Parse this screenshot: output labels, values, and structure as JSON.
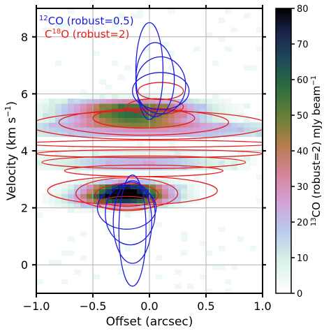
{
  "chart_data": {
    "type": "heatmap",
    "title": "",
    "xlabel": "Offset (arcsec)",
    "ylabel_main": "Velocity (km s",
    "ylabel_exp": "−1",
    "ylabel_end": ")",
    "xlim": [
      -1.0,
      1.0
    ],
    "ylim": [
      -1.0,
      9.0
    ],
    "xticks": [
      -1.0,
      -0.5,
      0.0,
      0.5,
      1.0
    ],
    "xtick_labels": [
      "−1.0",
      "−0.5",
      "0.0",
      "0.5",
      "1.0"
    ],
    "yticks": [
      0,
      2,
      4,
      6,
      8
    ],
    "ytick_labels": [
      "0",
      "2",
      "4",
      "6",
      "8"
    ],
    "grid": true,
    "colorbar": {
      "label_sup": "13",
      "label_main": "CO (robust=2) mJy beam",
      "label_exp": "−1",
      "min": 0,
      "max": 80,
      "ticks": [
        0,
        10,
        20,
        30,
        40,
        50,
        60,
        70,
        80
      ],
      "tick_labels": [
        "0",
        "10",
        "20",
        "30",
        "40",
        "50",
        "60",
        "70",
        "80"
      ],
      "colormap": "cubehelix_r"
    },
    "legend": {
      "placement": "top-left",
      "items": [
        {
          "sup": "12",
          "text": "CO (robust=0.5)",
          "color": "#1a1adc"
        },
        {
          "pre": "C",
          "sup": "18",
          "text": "O (robust=2)",
          "color": "#e81c1c"
        }
      ]
    },
    "emission_bands": [
      {
        "v_center": 5.35,
        "v_half_width": 0.45,
        "offset_center": -0.15,
        "offset_half_width": 0.55,
        "peak": 58
      },
      {
        "v_center": 4.75,
        "v_half_width": 0.25,
        "offset_center": 0.0,
        "offset_half_width": 1.1,
        "peak": 28
      },
      {
        "v_center": 3.6,
        "v_half_width": 0.3,
        "offset_center": -0.1,
        "offset_half_width": 0.7,
        "peak": 22
      },
      {
        "v_center": 2.55,
        "v_half_width": 0.35,
        "offset_center": -0.2,
        "offset_half_width": 0.35,
        "peak": 78
      },
      {
        "v_center": 2.25,
        "v_half_width": 0.3,
        "offset_center": -0.3,
        "offset_half_width": 0.4,
        "peak": 25
      }
    ],
    "contours_12co": [
      {
        "offset": 0.0,
        "v_center": 6.8,
        "half_width": 0.12,
        "half_height": 1.7
      },
      {
        "offset": 0.05,
        "v_center": 6.5,
        "half_width": 0.17,
        "half_height": 1.3
      },
      {
        "offset": 0.1,
        "v_center": 6.3,
        "half_width": 0.22,
        "half_height": 1.0
      },
      {
        "offset": 0.1,
        "v_center": 6.1,
        "half_width": 0.25,
        "half_height": 0.65
      },
      {
        "offset": -0.15,
        "v_center": 1.2,
        "half_width": 0.12,
        "half_height": 1.95
      },
      {
        "offset": -0.15,
        "v_center": 1.5,
        "half_width": 0.17,
        "half_height": 1.45
      },
      {
        "offset": -0.17,
        "v_center": 1.8,
        "half_width": 0.22,
        "half_height": 1.1
      },
      {
        "offset": -0.2,
        "v_center": 2.0,
        "half_width": 0.26,
        "half_height": 0.75
      }
    ],
    "contours_c18o_upper": [
      {
        "offset": 0.0,
        "v_center": 4.9,
        "half_width": 1.05,
        "half_height": 0.5
      },
      {
        "offset": -0.05,
        "v_center": 5.0,
        "half_width": 0.75,
        "half_height": 0.45
      },
      {
        "offset": -0.05,
        "v_center": 5.15,
        "half_width": 0.45,
        "half_height": 0.35
      },
      {
        "offset": 0.05,
        "v_center": 5.55,
        "half_width": 0.25,
        "half_height": 0.28
      },
      {
        "offset": 0.1,
        "v_center": 6.1,
        "half_width": 0.2,
        "half_height": 0.3
      }
    ],
    "contours_c18o_middle": [
      {
        "offset": 0.0,
        "v_center": 4.25,
        "half_width": 1.1,
        "half_height": 0.12
      },
      {
        "offset": 0.0,
        "v_center": 3.9,
        "half_width": 1.0,
        "half_height": 0.14
      },
      {
        "offset": -0.05,
        "v_center": 3.6,
        "half_width": 0.9,
        "half_height": 0.22
      },
      {
        "offset": -0.05,
        "v_center": 3.3,
        "half_width": 0.7,
        "half_height": 0.2
      }
    ],
    "contours_c18o_lower": [
      {
        "offset": -0.15,
        "v_center": 2.6,
        "half_width": 0.75,
        "half_height": 0.5
      },
      {
        "offset": -0.2,
        "v_center": 2.5,
        "half_width": 0.45,
        "half_height": 0.55
      },
      {
        "offset": -0.2,
        "v_center": 2.45,
        "half_width": 0.28,
        "half_height": 0.4
      },
      {
        "offset": -0.2,
        "v_center": 2.15,
        "half_width": 0.25,
        "half_height": 0.25
      }
    ]
  }
}
